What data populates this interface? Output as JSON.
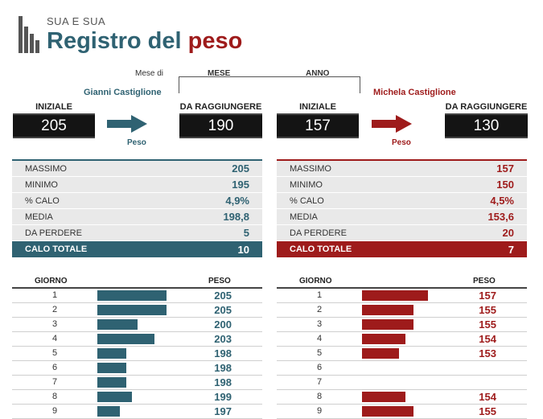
{
  "header": {
    "subtitle": "SUA E SUA",
    "title_main": "Registro del",
    "title_accent": "peso"
  },
  "period": {
    "mese_di": "Mese di",
    "mese_label": "MESE",
    "anno_label": "ANNO"
  },
  "colors": {
    "teal": "#2f6272",
    "red": "#9e1b1b"
  },
  "left": {
    "name": "Gianni Castiglione",
    "start_label": "INIZIALE",
    "start_value": "205",
    "target_label": "DA RAGGIUNGERE",
    "target_value": "190",
    "arrow_label": "Peso",
    "stats": [
      {
        "label": "MASSIMO",
        "value": "205"
      },
      {
        "label": "MINIMO",
        "value": "195"
      },
      {
        "label": "% CALO",
        "value": "4,9%"
      },
      {
        "label": "MEDIA",
        "value": "198,8"
      },
      {
        "label": "DA PERDERE",
        "value": "5"
      }
    ],
    "total_label": "CALO TOTALE",
    "total_value": "10",
    "daily_head_day": "GIORNO",
    "daily_head_weight": "PESO",
    "daily": [
      {
        "day": "1",
        "weight": "205",
        "bar": 1.0
      },
      {
        "day": "2",
        "weight": "205",
        "bar": 1.0
      },
      {
        "day": "3",
        "weight": "200",
        "bar": 0.58
      },
      {
        "day": "4",
        "weight": "203",
        "bar": 0.83
      },
      {
        "day": "5",
        "weight": "198",
        "bar": 0.42
      },
      {
        "day": "6",
        "weight": "198",
        "bar": 0.42
      },
      {
        "day": "7",
        "weight": "198",
        "bar": 0.42
      },
      {
        "day": "8",
        "weight": "199",
        "bar": 0.5
      },
      {
        "day": "9",
        "weight": "197",
        "bar": 0.33
      }
    ]
  },
  "right": {
    "name": "Michela Castiglione",
    "start_label": "INIZIALE",
    "start_value": "157",
    "target_label": "DA RAGGIUNGERE",
    "target_value": "130",
    "arrow_label": "Peso",
    "stats": [
      {
        "label": "MASSIMO",
        "value": "157"
      },
      {
        "label": "MINIMO",
        "value": "150"
      },
      {
        "label": "% CALO",
        "value": "4,5%"
      },
      {
        "label": "MEDIA",
        "value": "153,6"
      },
      {
        "label": "DA PERDERE",
        "value": "20"
      }
    ],
    "total_label": "CALO TOTALE",
    "total_value": "7",
    "daily_head_day": "GIORNO",
    "daily_head_weight": "PESO",
    "daily": [
      {
        "day": "1",
        "weight": "157",
        "bar": 1.0
      },
      {
        "day": "2",
        "weight": "155",
        "bar": 0.78
      },
      {
        "day": "3",
        "weight": "155",
        "bar": 0.78
      },
      {
        "day": "4",
        "weight": "154",
        "bar": 0.66
      },
      {
        "day": "5",
        "weight": "153",
        "bar": 0.56
      },
      {
        "day": "6",
        "weight": "",
        "bar": 0
      },
      {
        "day": "7",
        "weight": "",
        "bar": 0
      },
      {
        "day": "8",
        "weight": "154",
        "bar": 0.66
      },
      {
        "day": "9",
        "weight": "155",
        "bar": 0.78
      }
    ]
  }
}
